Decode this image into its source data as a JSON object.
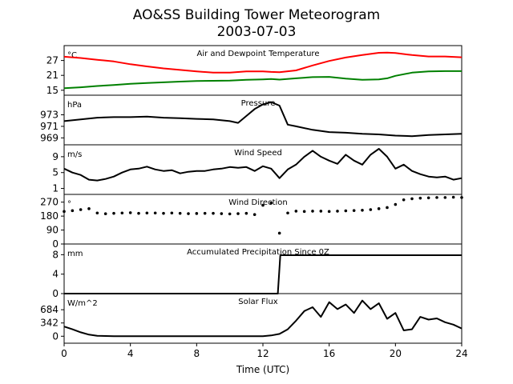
{
  "figure": {
    "title_line1": "AO&SS Building Tower Meteorogram",
    "title_line2": "2003-07-03",
    "xlabel": "Time (UTC)"
  },
  "chart_data": [
    {
      "type": "line",
      "title": "Air and Dewpoint Temperature",
      "unit": "°C",
      "ylim": [
        13,
        33
      ],
      "yticks": [
        15,
        21,
        27
      ],
      "x": [
        0,
        1,
        2,
        3,
        4,
        5,
        6,
        7,
        8,
        9,
        10,
        11,
        12,
        12.5,
        13,
        14,
        15,
        16,
        17,
        18,
        19,
        19.5,
        20,
        21,
        22,
        23,
        24
      ],
      "series": [
        {
          "color": "#ff0000",
          "values": [
            28.5,
            28,
            27.3,
            26.6,
            25.5,
            24.6,
            23.8,
            23.2,
            22.6,
            22.1,
            22.1,
            22.6,
            22.6,
            22.4,
            22.3,
            23,
            25,
            26.8,
            28.2,
            29.2,
            30.1,
            30.2,
            30,
            29.2,
            28.6,
            28.6,
            28.3
          ]
        },
        {
          "color": "#008000",
          "values": [
            15.8,
            16.2,
            16.7,
            17.1,
            17.6,
            17.9,
            18.2,
            18.5,
            18.7,
            18.8,
            18.9,
            19.2,
            19.4,
            19.5,
            19.3,
            19.8,
            20.3,
            20.4,
            19.7,
            19.2,
            19.4,
            19.8,
            20.8,
            22.1,
            22.6,
            22.7,
            22.7
          ]
        }
      ]
    },
    {
      "type": "line",
      "title": "Pressure",
      "unit": "hPa",
      "ylim": [
        967.8,
        976.4
      ],
      "yticks": [
        969,
        971,
        973
      ],
      "x": [
        0,
        1,
        2,
        3,
        4,
        5,
        6,
        7,
        8,
        9,
        10,
        10.5,
        11,
        11.5,
        12,
        12.5,
        13,
        13.5,
        14,
        15,
        16,
        17,
        18,
        19,
        20,
        21,
        22,
        23,
        24
      ],
      "series": [
        {
          "color": "#000000",
          "values": [
            971.9,
            972.2,
            972.5,
            972.6,
            972.6,
            972.7,
            972.5,
            972.4,
            972.3,
            972.2,
            971.9,
            971.6,
            972.8,
            974,
            974.8,
            975.2,
            974.6,
            971.3,
            971,
            970.4,
            970,
            969.9,
            969.7,
            969.6,
            969.4,
            969.3,
            969.5,
            969.6,
            969.7
          ]
        }
      ]
    },
    {
      "type": "line",
      "title": "Wind Speed",
      "unit": "m/s",
      "ylim": [
        -0.5,
        12
      ],
      "yticks": [
        1,
        5,
        9
      ],
      "x": [
        0,
        0.5,
        1,
        1.5,
        2,
        2.5,
        3,
        3.5,
        4,
        4.5,
        5,
        5.5,
        6,
        6.5,
        7,
        7.5,
        8,
        8.5,
        9,
        9.5,
        10,
        10.5,
        11,
        11.5,
        12,
        12.5,
        13,
        13.5,
        14,
        14.5,
        15,
        15.5,
        16,
        16.5,
        17,
        17.5,
        18,
        18.5,
        19,
        19.5,
        20,
        20.5,
        21,
        21.5,
        22,
        22.5,
        23,
        23.5,
        24
      ],
      "series": [
        {
          "color": "#000000",
          "values": [
            6,
            5,
            4.4,
            3.2,
            3,
            3.4,
            4,
            5,
            5.8,
            6,
            6.5,
            5.8,
            5.4,
            5.6,
            4.8,
            5.2,
            5.4,
            5.4,
            5.8,
            6,
            6.4,
            6.2,
            6.4,
            5.4,
            6.6,
            6,
            3.6,
            5.8,
            7,
            9,
            10.5,
            9,
            8,
            7.2,
            9.5,
            8,
            7,
            9.5,
            11,
            9,
            6,
            7,
            5.4,
            4.6,
            4,
            3.8,
            4,
            3.2,
            3.6
          ]
        }
      ]
    },
    {
      "type": "scatter",
      "title": "Wind Direction",
      "unit": "°",
      "ylim": [
        0,
        320
      ],
      "yticks": [
        0,
        90,
        180,
        270
      ],
      "x": [
        0,
        0.5,
        1,
        1.5,
        2,
        2.5,
        3,
        3.5,
        4,
        4.5,
        5,
        5.5,
        6,
        6.5,
        7,
        7.5,
        8,
        8.5,
        9,
        9.5,
        10,
        10.5,
        11,
        11.5,
        12,
        12.5,
        13,
        13.5,
        14,
        14.5,
        15,
        15.5,
        16,
        16.5,
        17,
        17.5,
        18,
        18.5,
        19,
        19.5,
        20,
        20.5,
        21,
        21.5,
        22,
        22.5,
        23,
        23.5,
        24
      ],
      "series": [
        {
          "color": "#000000",
          "values": [
            210,
            215,
            222,
            228,
            200,
            195,
            198,
            200,
            202,
            198,
            200,
            200,
            198,
            200,
            198,
            196,
            197,
            198,
            198,
            196,
            194,
            196,
            198,
            190,
            250,
            265,
            70,
            200,
            212,
            210,
            212,
            212,
            210,
            212,
            214,
            216,
            218,
            222,
            228,
            235,
            255,
            285,
            292,
            296,
            298,
            300,
            300,
            302,
            300
          ]
        }
      ]
    },
    {
      "type": "line",
      "title": "Accumulated Precipitation Since 0Z",
      "unit": "mm",
      "ylim": [
        0,
        10.2
      ],
      "yticks": [
        0,
        4,
        8
      ],
      "x": [
        0,
        12,
        12.9,
        13.05,
        13.2,
        24
      ],
      "series": [
        {
          "color": "#000000",
          "values": [
            0,
            0,
            0,
            7.9,
            7.9,
            7.9
          ]
        }
      ]
    },
    {
      "type": "line",
      "title": "Solar Flux",
      "unit": "W/m^2",
      "ylim": [
        -180,
        1100
      ],
      "yticks": [
        0,
        342,
        684
      ],
      "x": [
        0,
        0.5,
        1,
        1.5,
        2,
        3,
        4,
        5,
        6,
        7,
        8,
        9,
        10,
        11,
        12,
        12.5,
        13,
        13.5,
        14,
        14.5,
        15,
        15.5,
        16,
        16.5,
        17,
        17.5,
        18,
        18.5,
        19,
        19.5,
        20,
        20.5,
        21,
        21.5,
        22,
        22.5,
        23,
        23.5,
        24
      ],
      "series": [
        {
          "color": "#000000",
          "values": [
            250,
            180,
            100,
            40,
            10,
            2,
            0,
            0,
            0,
            0,
            0,
            0,
            0,
            0,
            0,
            20,
            60,
            180,
            400,
            650,
            750,
            500,
            880,
            700,
            820,
            600,
            920,
            700,
            850,
            450,
            600,
            150,
            180,
            500,
            430,
            460,
            360,
            300,
            200
          ]
        }
      ]
    }
  ],
  "xaxis": {
    "xlim": [
      0,
      24
    ],
    "ticks": [
      "0",
      "4",
      "8",
      "12",
      "16",
      "20",
      "24"
    ]
  }
}
